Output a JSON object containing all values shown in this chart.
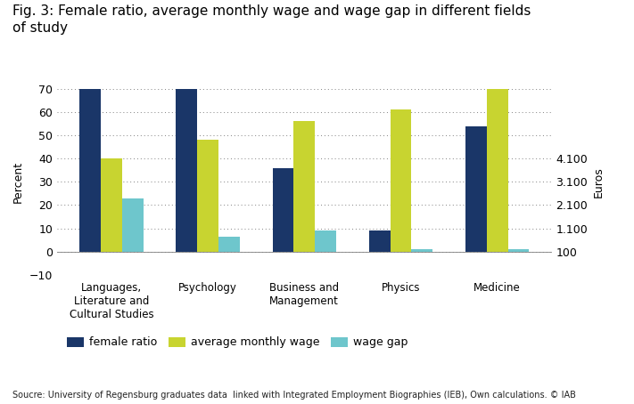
{
  "title": "Fig. 3: Female ratio, average monthly wage and wage gap in different fields\nof study",
  "categories": [
    "Languages,\nLiterature and\nCultural Studies",
    "Psychology",
    "Business and\nManagement",
    "Physics",
    "Medicine"
  ],
  "female_ratio": [
    70,
    70,
    36,
    9,
    54
  ],
  "avg_monthly_wage": [
    40,
    48,
    56,
    61,
    70
  ],
  "wage_gap": [
    23,
    6.5,
    9,
    1,
    1
  ],
  "bar_colors": {
    "female_ratio": "#1a3668",
    "avg_monthly_wage": "#c8d430",
    "wage_gap": "#6ec6cc"
  },
  "left_ylim": [
    -10,
    70
  ],
  "left_yticks": [
    -10,
    0,
    10,
    20,
    30,
    40,
    50,
    60,
    70
  ],
  "right_yticks_labels": [
    "100",
    "1.100",
    "2.100",
    "3.100",
    "4.100"
  ],
  "right_yticks_values": [
    0,
    10,
    20,
    30,
    40
  ],
  "left_ylabel": "Percent",
  "right_ylabel": "Euros",
  "legend_labels": [
    "female ratio",
    "average monthly wage",
    "wage gap"
  ],
  "source_text": "Soucre: University of Regensburg graduates data  linked with Integrated Employment Biographies (IEB), Own calculations. © IAB",
  "background_color": "#ffffff",
  "bar_width": 0.22
}
